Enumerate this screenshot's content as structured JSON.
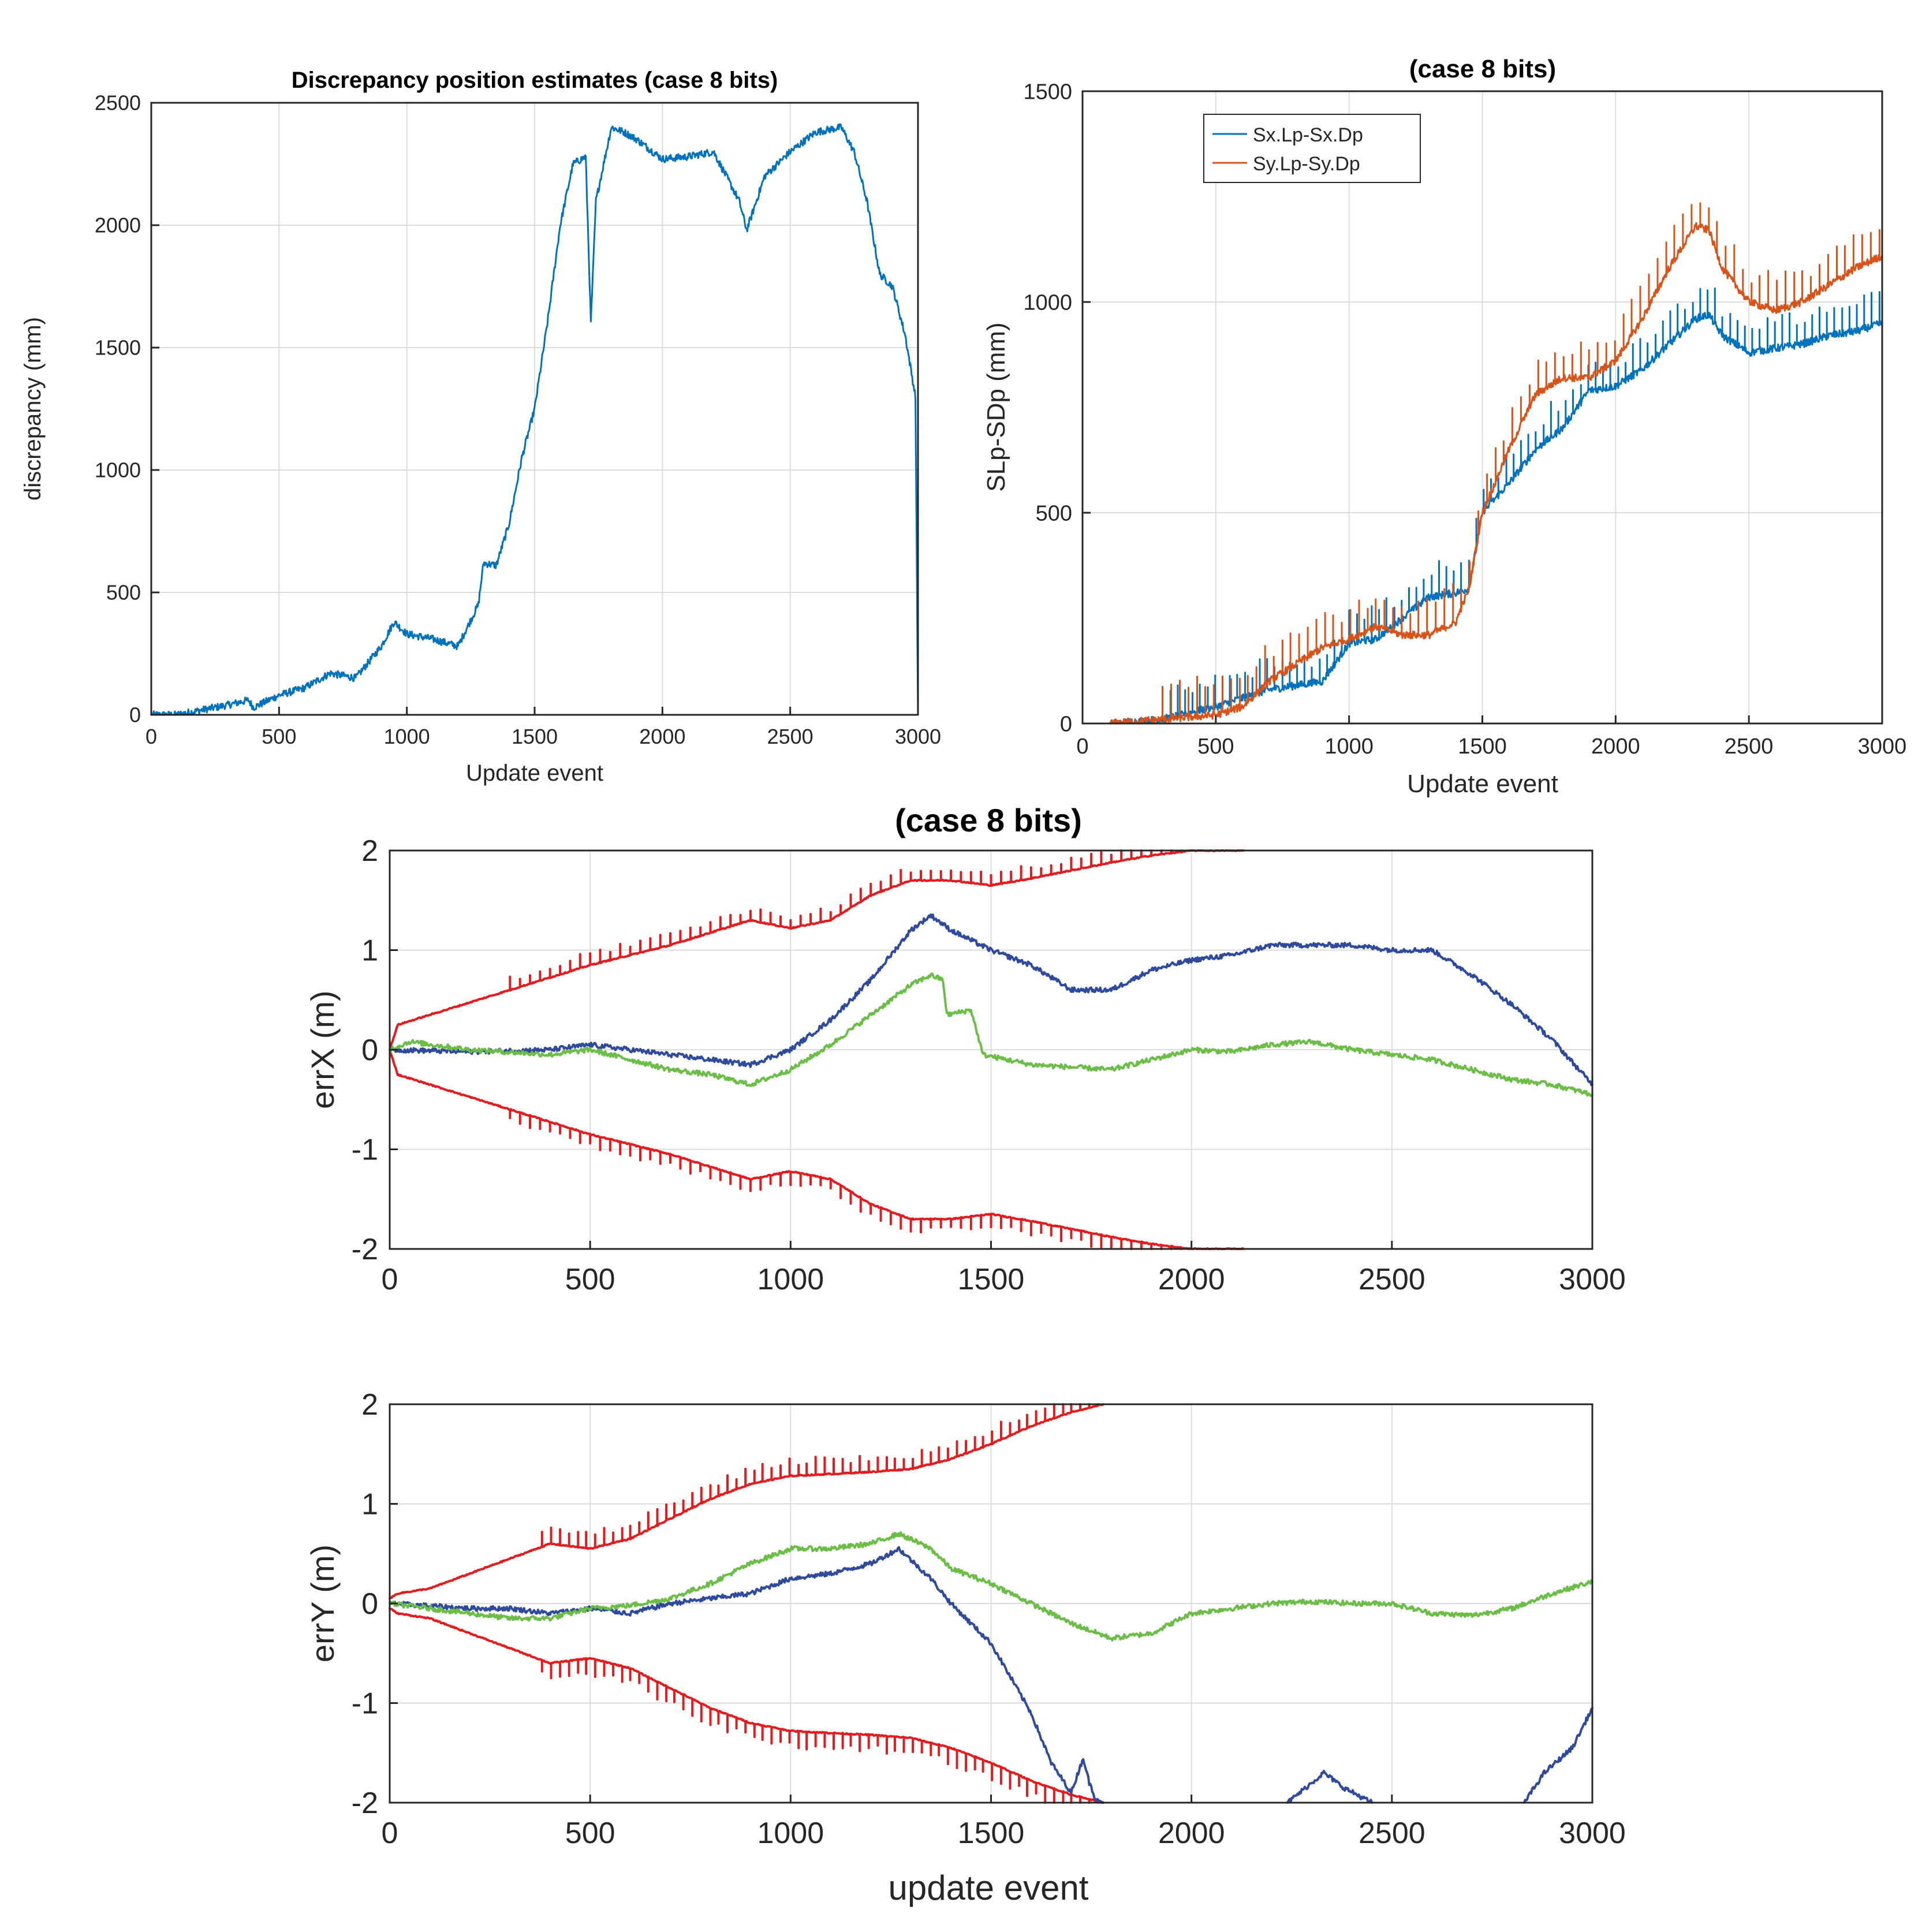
{
  "chart_data": [
    {
      "id": "p1",
      "type": "line",
      "title": "Discrepancy position estimates (case 8 bits)",
      "xlabel": "Update event",
      "ylabel": "discrepancy (mm)",
      "xlim": [
        0,
        3000
      ],
      "ylim": [
        0,
        2500
      ],
      "xticks": [
        0,
        500,
        1000,
        1500,
        2000,
        2500,
        3000
      ],
      "yticks": [
        0,
        500,
        1000,
        1500,
        2000,
        2500
      ],
      "grid": true,
      "series": [
        {
          "name": "discrepancy",
          "color": "#0072BD",
          "x": [
            0,
            100,
            200,
            300,
            380,
            400,
            500,
            600,
            700,
            800,
            900,
            950,
            1000,
            1100,
            1200,
            1280,
            1300,
            1350,
            1400,
            1450,
            1500,
            1550,
            1600,
            1650,
            1700,
            1720,
            1740,
            1800,
            1850,
            1900,
            2000,
            2100,
            2200,
            2300,
            2330,
            2400,
            2500,
            2600,
            2700,
            2750,
            2800,
            2850,
            2900,
            2950,
            2990,
            3000
          ],
          "values": [
            0,
            0,
            20,
            40,
            60,
            30,
            80,
            110,
            170,
            150,
            280,
            380,
            330,
            310,
            280,
            450,
            620,
            610,
            780,
            1050,
            1250,
            1600,
            2000,
            2250,
            2280,
            1600,
            2100,
            2400,
            2380,
            2350,
            2270,
            2280,
            2300,
            2100,
            1980,
            2200,
            2300,
            2380,
            2400,
            2300,
            2100,
            1800,
            1750,
            1550,
            1300,
            0
          ]
        }
      ]
    },
    {
      "id": "p2",
      "type": "line",
      "title": "(case 8 bits)",
      "xlabel": "Update event",
      "ylabel": "SLp-SDp (mm)",
      "xlim": [
        0,
        3000
      ],
      "ylim": [
        0,
        1500
      ],
      "xticks": [
        0,
        500,
        1000,
        1500,
        2000,
        2500,
        3000
      ],
      "yticks": [
        0,
        500,
        1000,
        1500
      ],
      "grid": true,
      "legend": "top-left",
      "series": [
        {
          "name": "Sx.Lp-Sx.Dp",
          "color": "#0072BD",
          "x": [
            100,
            300,
            500,
            700,
            900,
            1000,
            1100,
            1200,
            1300,
            1400,
            1450,
            1500,
            1600,
            1700,
            1800,
            1900,
            2000,
            2100,
            2200,
            2300,
            2350,
            2400,
            2500,
            2600,
            2700,
            2800,
            2900,
            3000
          ],
          "values": [
            0,
            10,
            40,
            80,
            100,
            190,
            200,
            250,
            300,
            310,
            320,
            500,
            570,
            650,
            700,
            790,
            800,
            840,
            900,
            960,
            970,
            920,
            880,
            890,
            900,
            920,
            930,
            950
          ],
          "spikes": {
            "from": 300,
            "to": 3000,
            "step": 28,
            "height": 80
          }
        },
        {
          "name": "Sy.Lp-Sy.Dp",
          "color": "#D95319",
          "x": [
            100,
            300,
            500,
            600,
            700,
            900,
            1000,
            1100,
            1200,
            1300,
            1400,
            1450,
            1500,
            1600,
            1700,
            1800,
            1900,
            2000,
            2100,
            2200,
            2300,
            2350,
            2400,
            2500,
            2600,
            2700,
            2800,
            2900,
            3000
          ],
          "values": [
            0,
            10,
            20,
            40,
            100,
            180,
            200,
            230,
            210,
            210,
            240,
            320,
            500,
            650,
            780,
            820,
            820,
            860,
            960,
            1080,
            1180,
            1170,
            1080,
            1000,
            980,
            1000,
            1040,
            1080,
            1110
          ],
          "spikes": {
            "from": 300,
            "to": 3000,
            "step": 32,
            "height": 90
          }
        }
      ]
    },
    {
      "id": "p3",
      "type": "line",
      "title": "(case 8 bits)",
      "xlabel": "",
      "ylabel": "errX (m)",
      "xlim": [
        0,
        3000
      ],
      "ylim": [
        -2,
        2
      ],
      "xticks": [
        0,
        500,
        1000,
        1500,
        2000,
        2500,
        3000
      ],
      "yticks": [
        -2,
        -1,
        0,
        1,
        2
      ],
      "grid": true,
      "series": [
        {
          "name": "upper bound",
          "color": "#E41A1C",
          "x": [
            0,
            20,
            100,
            300,
            500,
            700,
            900,
            1000,
            1100,
            1200,
            1300,
            1400,
            1500,
            1600,
            1700,
            1800,
            1900,
            2000,
            2130
          ],
          "values": [
            0,
            0.25,
            0.35,
            0.6,
            0.85,
            1.05,
            1.3,
            1.22,
            1.3,
            1.55,
            1.7,
            1.7,
            1.65,
            1.72,
            1.8,
            1.88,
            1.95,
            2.0,
            2.0
          ],
          "spikes": {
            "from": 300,
            "to": 2130,
            "step": 25,
            "height": 0.14
          }
        },
        {
          "name": "lower bound",
          "color": "#E41A1C",
          "x": [
            0,
            20,
            100,
            300,
            500,
            700,
            900,
            1000,
            1100,
            1200,
            1300,
            1400,
            1500,
            1600,
            1700,
            1800,
            1900,
            2000,
            2130
          ],
          "values": [
            0,
            -0.25,
            -0.35,
            -0.6,
            -0.85,
            -1.05,
            -1.3,
            -1.22,
            -1.3,
            -1.55,
            -1.7,
            -1.7,
            -1.65,
            -1.72,
            -1.8,
            -1.88,
            -1.95,
            -2.0,
            -2.0
          ],
          "spikes": {
            "from": 300,
            "to": 2130,
            "step": 25,
            "height": -0.14
          }
        },
        {
          "name": "blue",
          "color": "#2E4A9E",
          "x": [
            0,
            200,
            400,
            500,
            600,
            700,
            800,
            900,
            1000,
            1100,
            1200,
            1300,
            1350,
            1400,
            1500,
            1600,
            1700,
            1800,
            1900,
            2000,
            2100,
            2200,
            2300,
            2400,
            2500,
            2600,
            2700,
            2800,
            2900,
            3000
          ],
          "values": [
            0,
            -0.02,
            0,
            0.05,
            0,
            -0.05,
            -0.1,
            -0.15,
            0,
            0.3,
            0.7,
            1.2,
            1.35,
            1.2,
            1.0,
            0.85,
            0.6,
            0.6,
            0.8,
            0.9,
            0.95,
            1.05,
            1.05,
            1.05,
            1.0,
            1.0,
            0.75,
            0.45,
            0.1,
            -0.35
          ]
        },
        {
          "name": "green",
          "color": "#6ABD45",
          "x": [
            0,
            50,
            200,
            400,
            500,
            700,
            800,
            900,
            1000,
            1100,
            1200,
            1300,
            1350,
            1380,
            1390,
            1450,
            1480,
            1600,
            1800,
            1900,
            2000,
            2100,
            2200,
            2300,
            2400,
            2500,
            2600,
            2700,
            2800,
            2900,
            3000
          ],
          "values": [
            0,
            0.08,
            0.0,
            -0.05,
            0.0,
            -0.2,
            -0.25,
            -0.35,
            -0.2,
            0.05,
            0.35,
            0.65,
            0.75,
            0.7,
            0.35,
            0.4,
            -0.05,
            -0.15,
            -0.2,
            -0.1,
            0.0,
            -0.02,
            0.05,
            0.08,
            0.0,
            -0.05,
            -0.1,
            -0.2,
            -0.3,
            -0.35,
            -0.45
          ]
        }
      ]
    },
    {
      "id": "p4",
      "type": "line",
      "title": "",
      "xlabel": "update event",
      "ylabel": "errY (m)",
      "xlim": [
        0,
        3000
      ],
      "ylim": [
        -2,
        2
      ],
      "xticks": [
        0,
        500,
        1000,
        1500,
        2000,
        2500,
        3000
      ],
      "yticks": [
        -2,
        -1,
        0,
        1,
        2
      ],
      "grid": true,
      "series": [
        {
          "name": "upper bound",
          "color": "#E41A1C",
          "x": [
            0,
            20,
            100,
            200,
            300,
            400,
            500,
            600,
            700,
            800,
            900,
            1000,
            1100,
            1200,
            1300,
            1400,
            1500,
            1600,
            1700,
            1780
          ],
          "values": [
            0.05,
            0.1,
            0.15,
            0.3,
            0.45,
            0.6,
            0.55,
            0.65,
            0.85,
            1.05,
            1.2,
            1.28,
            1.3,
            1.32,
            1.35,
            1.45,
            1.6,
            1.78,
            1.92,
            2.0
          ],
          "spikes": {
            "from": 380,
            "to": 1780,
            "step": 22,
            "height": 0.18
          }
        },
        {
          "name": "lower bound",
          "color": "#E41A1C",
          "x": [
            0,
            20,
            100,
            200,
            300,
            400,
            500,
            600,
            700,
            800,
            900,
            1000,
            1100,
            1200,
            1300,
            1400,
            1500,
            1600,
            1700,
            1780
          ],
          "values": [
            -0.05,
            -0.1,
            -0.15,
            -0.3,
            -0.45,
            -0.6,
            -0.55,
            -0.65,
            -0.85,
            -1.05,
            -1.2,
            -1.28,
            -1.3,
            -1.32,
            -1.35,
            -1.45,
            -1.6,
            -1.78,
            -1.92,
            -2.0
          ],
          "spikes": {
            "from": 380,
            "to": 1780,
            "step": 22,
            "height": -0.18
          }
        },
        {
          "name": "blue",
          "color": "#2E4A9E",
          "segments": [
            {
              "x": [
                0,
                200,
                300,
                400,
                500,
                600,
                700,
                800,
                900,
                1000,
                1100,
                1200,
                1270,
                1350,
                1400,
                1500,
                1600,
                1650,
                1700,
                1730,
                1745,
                1760,
                1780
              ],
              "values": [
                0,
                -0.05,
                -0.05,
                -0.1,
                -0.05,
                -0.1,
                0.0,
                0.05,
                0.1,
                0.25,
                0.3,
                0.4,
                0.55,
                0.25,
                0.0,
                -0.4,
                -1.1,
                -1.6,
                -1.9,
                -1.55,
                -1.8,
                -1.95,
                -2.0
              ]
            },
            {
              "x": [
                2240,
                2300,
                2330,
                2380,
                2450
              ],
              "values": [
                -2.0,
                -1.8,
                -1.7,
                -1.85,
                -2.0
              ]
            },
            {
              "x": [
                2830,
                2880,
                2950,
                3000
              ],
              "values": [
                -2.0,
                -1.7,
                -1.45,
                -1.05
              ]
            }
          ]
        },
        {
          "name": "green",
          "color": "#6ABD45",
          "x": [
            0,
            100,
            200,
            300,
            400,
            500,
            600,
            700,
            800,
            900,
            1000,
            1100,
            1200,
            1270,
            1350,
            1400,
            1500,
            1600,
            1700,
            1800,
            1900,
            2000,
            2100,
            2200,
            2300,
            2400,
            2500,
            2600,
            2700,
            2800,
            2900,
            3000
          ],
          "values": [
            0,
            -0.05,
            -0.1,
            -0.15,
            -0.15,
            -0.05,
            -0.02,
            0.05,
            0.2,
            0.4,
            0.55,
            0.55,
            0.6,
            0.7,
            0.55,
            0.35,
            0.2,
            0.0,
            -0.2,
            -0.35,
            -0.3,
            -0.1,
            -0.05,
            0.0,
            0.02,
            0.0,
            0.0,
            -0.1,
            -0.12,
            -0.05,
            0.1,
            0.22
          ]
        }
      ]
    }
  ]
}
